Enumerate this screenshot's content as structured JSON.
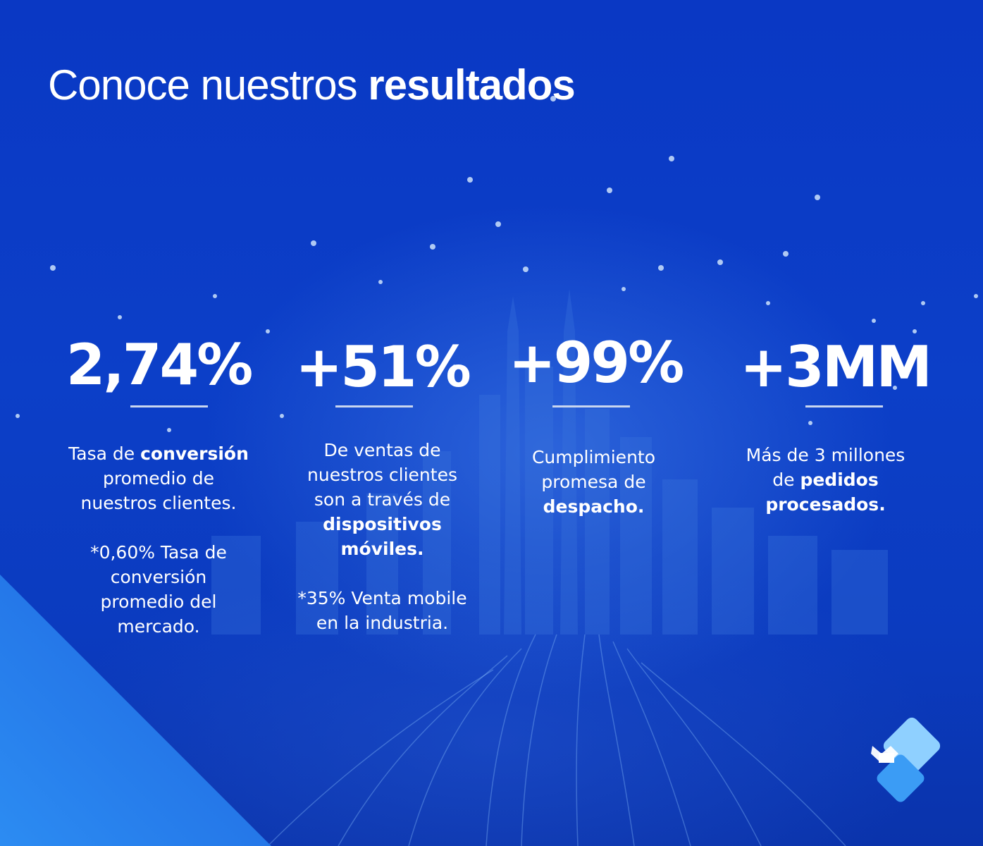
{
  "title": {
    "regular": "Conoce nuestros ",
    "bold": "resultados"
  },
  "stats": [
    {
      "value": "2,74%",
      "desc": [
        {
          "pre": "Tasa de ",
          "bold": "conversión",
          "post": ""
        },
        {
          "pre": "promedio de",
          "bold": "",
          "post": ""
        },
        {
          "pre": "nuestros clientes.",
          "bold": "",
          "post": ""
        }
      ],
      "note": [
        "*0,60% Tasa de",
        "conversión",
        "promedio del",
        "mercado."
      ]
    },
    {
      "value": "+51%",
      "desc": [
        {
          "pre": "De ventas de",
          "bold": "",
          "post": ""
        },
        {
          "pre": "nuestros clientes",
          "bold": "",
          "post": ""
        },
        {
          "pre": "son a través de",
          "bold": "",
          "post": ""
        },
        {
          "pre": "",
          "bold": "dispositivos",
          "post": ""
        },
        {
          "pre": "",
          "bold": "móviles.",
          "post": ""
        }
      ],
      "note": [
        "*35% Venta mobile",
        "en la industria."
      ]
    },
    {
      "value": "+99%",
      "desc": [
        {
          "pre": "Cumplimiento",
          "bold": "",
          "post": ""
        },
        {
          "pre": "promesa de",
          "bold": "",
          "post": ""
        },
        {
          "pre": "",
          "bold": "despacho.",
          "post": ""
        }
      ],
      "note": []
    },
    {
      "value": "+3MM",
      "desc": [
        {
          "pre": "Más de 3 millones",
          "bold": "",
          "post": ""
        },
        {
          "pre": "de ",
          "bold": "pedidos",
          "post": ""
        },
        {
          "pre": "",
          "bold": "procesados.",
          "post": ""
        }
      ],
      "note": []
    }
  ],
  "logo_icon": "brand-arrow-icon",
  "colors": {
    "background": "#0b3cc4",
    "accent_triangle": "#2f8ff0",
    "logo_light": "#7fc4ff",
    "rule": "#c9d6ef"
  }
}
